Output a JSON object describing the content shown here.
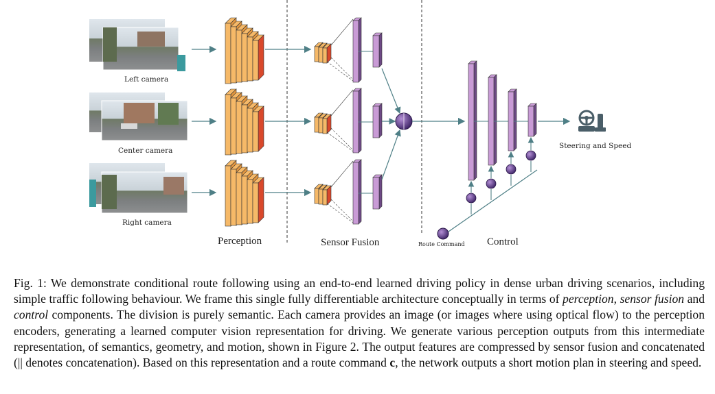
{
  "figure": {
    "camera_labels": {
      "left": "Left camera",
      "center": "Center camera",
      "right": "Right camera"
    },
    "stage_labels": {
      "perception": "Perception",
      "sensor_fusion": "Sensor Fusion",
      "control": "Control"
    },
    "route_command_label": "Route Command",
    "output_label": "Steering and Speed",
    "output_icon": "steering-wheel-and-pedal-icon",
    "colors": {
      "perception_block": "#f6b968",
      "perception_block_side": "#d9482b",
      "fusion_block": "#c99bd6",
      "fusion_block_edge": "#6e4a86",
      "node": "#5a3a8a",
      "arrow": "#4e7f86"
    }
  },
  "caption": {
    "prefix": "Fig. 1: We demonstrate conditional route following using an end-to-end learned driving policy in dense urban driving scenarios, including simple traffic following behaviour. We frame this single fully differentiable architecture conceptually in terms of ",
    "term1": "perception",
    "sep1": ", ",
    "term2": "sensor fusion",
    "sep2": " and ",
    "term3": "control",
    "mid": " components. The division is purely semantic. Each camera provides an image (or images where using optical flow) to the perception encoders, generating a learned computer vision representation for driving. We generate various perception outputs from this intermediate representation, of semantics, geometry, and motion, shown in Figure 2. The output features are compressed by sensor fusion and concatenated (|| denotes concatenation). Based on this representation and a route command ",
    "cmd": "c",
    "suffix": ", the network outputs a short motion plan in steering and speed."
  }
}
